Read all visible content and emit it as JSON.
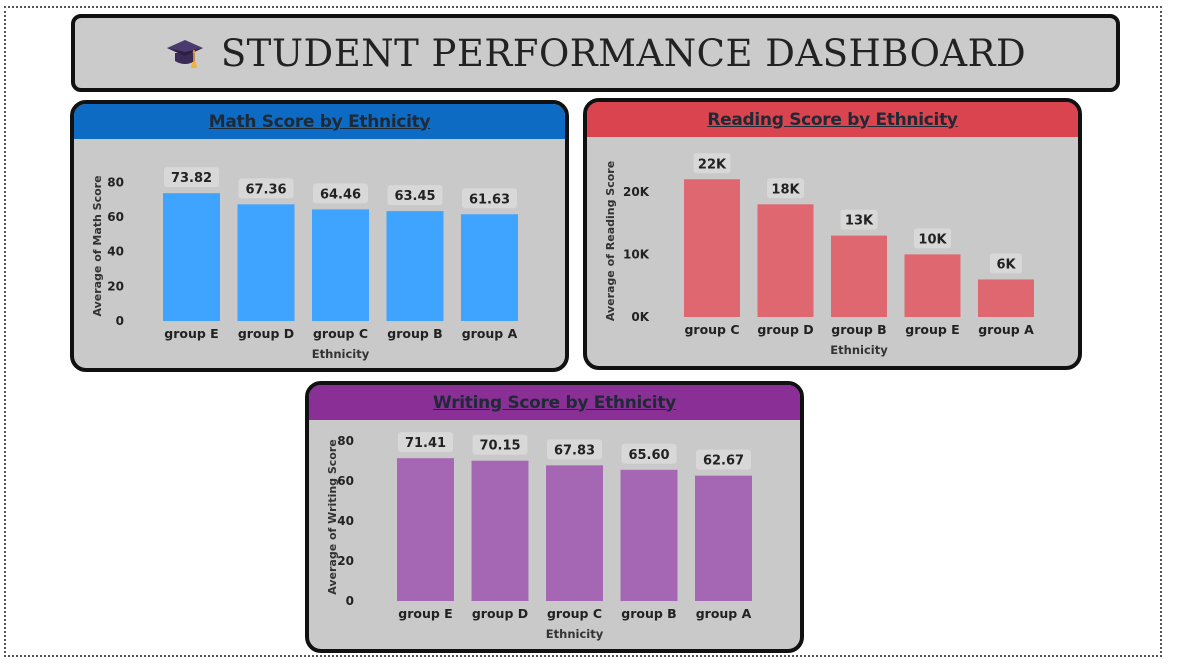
{
  "dashboard": {
    "title": "STUDENT PERFORMANCE DASHBOARD",
    "icon": "graduation-cap-icon"
  },
  "colors": {
    "math": "#3fa4ff",
    "math_header": "#0e6bc4",
    "reading": "#df6870",
    "reading_header": "#d9444f",
    "writing": "#a566b3",
    "writing_header": "#8a2f95",
    "panel_bg": "#c9c9c9",
    "label_bg": "#d8d8d8"
  },
  "chart_data": [
    {
      "id": "math",
      "type": "bar",
      "title": "Math Score by Ethnicity",
      "xlabel": "Ethnicity",
      "ylabel": "Average of Math Score",
      "categories": [
        "group E",
        "group D",
        "group C",
        "group B",
        "group A"
      ],
      "values": [
        73.82,
        67.36,
        64.46,
        63.45,
        61.63
      ],
      "data_labels": [
        "73.82",
        "67.36",
        "64.46",
        "63.45",
        "61.63"
      ],
      "yticks": [
        "0",
        "20",
        "40",
        "60",
        "80"
      ],
      "ytick_values": [
        0,
        20,
        40,
        60,
        80
      ],
      "ylim": [
        0,
        82
      ],
      "grid": false
    },
    {
      "id": "reading",
      "type": "bar",
      "title": "Reading Score by Ethnicity",
      "xlabel": "Ethnicity",
      "ylabel": "Average of Reading Score",
      "categories": [
        "group C",
        "group D",
        "group B",
        "group E",
        "group A"
      ],
      "values": [
        22000,
        18000,
        13000,
        10000,
        6000
      ],
      "data_labels": [
        "22K",
        "18K",
        "13K",
        "10K",
        "6K"
      ],
      "yticks": [
        "0K",
        "10K",
        "20K"
      ],
      "ytick_values": [
        0,
        10000,
        20000
      ],
      "ylim": [
        0,
        23000
      ],
      "grid": false
    },
    {
      "id": "writing",
      "type": "bar",
      "title": "Writing Score by Ethnicity",
      "xlabel": "Ethnicity",
      "ylabel": "Average of Writing Score",
      "categories": [
        "group E",
        "group D",
        "group C",
        "group B",
        "group A"
      ],
      "values": [
        71.41,
        70.15,
        67.83,
        65.6,
        62.67
      ],
      "data_labels": [
        "71.41",
        "70.15",
        "67.83",
        "65.60",
        "62.67"
      ],
      "yticks": [
        "0",
        "20",
        "40",
        "60",
        "80"
      ],
      "ytick_values": [
        0,
        20,
        40,
        60,
        80
      ],
      "ylim": [
        0,
        80
      ],
      "grid": false
    }
  ]
}
